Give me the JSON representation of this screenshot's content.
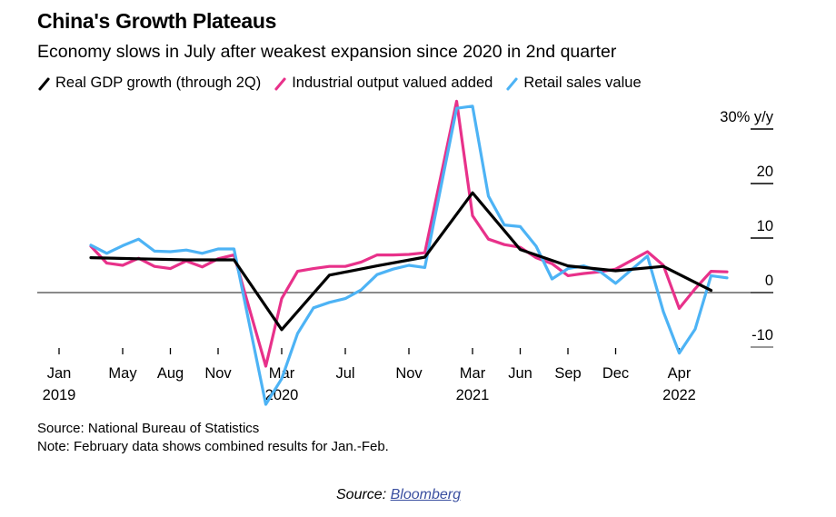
{
  "chart_data": {
    "type": "line",
    "title": "China's Growth Plateaus",
    "subtitle": "Economy slows in July after weakest expansion since 2020 in 2nd quarter",
    "ylabel": "30% y/y",
    "ylim": [
      -12,
      36
    ],
    "yticks": [
      30,
      20,
      10,
      0,
      -10
    ],
    "ytick_labels": [
      "30% y/y",
      "20",
      "10",
      "0",
      "-10"
    ],
    "xticks": [
      {
        "x": "2019-01",
        "label": "Jan",
        "year": "2019"
      },
      {
        "x": "2019-05",
        "label": "May",
        "year": ""
      },
      {
        "x": "2019-08",
        "label": "Aug",
        "year": ""
      },
      {
        "x": "2019-11",
        "label": "Nov",
        "year": ""
      },
      {
        "x": "2020-03",
        "label": "Mar",
        "year": "2020"
      },
      {
        "x": "2020-07",
        "label": "Jul",
        "year": ""
      },
      {
        "x": "2020-11",
        "label": "Nov",
        "year": ""
      },
      {
        "x": "2021-03",
        "label": "Mar",
        "year": "2021"
      },
      {
        "x": "2021-06",
        "label": "Jun",
        "year": ""
      },
      {
        "x": "2021-09",
        "label": "Sep",
        "year": ""
      },
      {
        "x": "2021-12",
        "label": "Dec",
        "year": ""
      },
      {
        "x": "2022-04",
        "label": "Apr",
        "year": "2022"
      }
    ],
    "grid": false,
    "legend_placement": "top",
    "series": [
      {
        "name": "Real GDP growth (through 2Q)",
        "color": "#000000",
        "points": [
          [
            "2019-03",
            6.4
          ],
          [
            "2019-06",
            6.2
          ],
          [
            "2019-09",
            6.0
          ],
          [
            "2019-12",
            6.0
          ],
          [
            "2020-03",
            -6.8
          ],
          [
            "2020-06",
            3.2
          ],
          [
            "2020-09",
            4.9
          ],
          [
            "2020-12",
            6.5
          ],
          [
            "2021-03",
            18.3
          ],
          [
            "2021-06",
            7.9
          ],
          [
            "2021-09",
            4.9
          ],
          [
            "2021-12",
            4.0
          ],
          [
            "2022-03",
            4.8
          ],
          [
            "2022-06",
            0.4
          ]
        ]
      },
      {
        "name": "Industrial output valued added",
        "color": "#e8318a",
        "points": [
          [
            "2019-03",
            8.5
          ],
          [
            "2019-04",
            5.4
          ],
          [
            "2019-05",
            5.0
          ],
          [
            "2019-06",
            6.3
          ],
          [
            "2019-07",
            4.8
          ],
          [
            "2019-08",
            4.4
          ],
          [
            "2019-09",
            5.8
          ],
          [
            "2019-10",
            4.7
          ],
          [
            "2019-11",
            6.2
          ],
          [
            "2019-12",
            6.9
          ],
          [
            "2020-02",
            -13.5
          ],
          [
            "2020-03",
            -1.1
          ],
          [
            "2020-04",
            3.9
          ],
          [
            "2020-05",
            4.4
          ],
          [
            "2020-06",
            4.8
          ],
          [
            "2020-07",
            4.8
          ],
          [
            "2020-08",
            5.6
          ],
          [
            "2020-09",
            6.9
          ],
          [
            "2020-10",
            6.9
          ],
          [
            "2020-11",
            7.0
          ],
          [
            "2020-12",
            7.3
          ],
          [
            "2021-02",
            35.1
          ],
          [
            "2021-03",
            14.1
          ],
          [
            "2021-04",
            9.8
          ],
          [
            "2021-05",
            8.8
          ],
          [
            "2021-06",
            8.3
          ],
          [
            "2021-07",
            6.4
          ],
          [
            "2021-08",
            5.3
          ],
          [
            "2021-09",
            3.1
          ],
          [
            "2021-10",
            3.5
          ],
          [
            "2021-11",
            3.8
          ],
          [
            "2021-12",
            4.3
          ],
          [
            "2022-02",
            7.5
          ],
          [
            "2022-03",
            5.0
          ],
          [
            "2022-04",
            -2.9
          ],
          [
            "2022-05",
            0.7
          ],
          [
            "2022-06",
            3.9
          ],
          [
            "2022-07",
            3.8
          ]
        ]
      },
      {
        "name": "Retail sales value",
        "color": "#4db3f5",
        "points": [
          [
            "2019-03",
            8.7
          ],
          [
            "2019-04",
            7.2
          ],
          [
            "2019-05",
            8.6
          ],
          [
            "2019-06",
            9.8
          ],
          [
            "2019-07",
            7.6
          ],
          [
            "2019-08",
            7.5
          ],
          [
            "2019-09",
            7.8
          ],
          [
            "2019-10",
            7.2
          ],
          [
            "2019-11",
            8.0
          ],
          [
            "2019-12",
            8.0
          ],
          [
            "2020-02",
            -20.5
          ],
          [
            "2020-03",
            -15.8
          ],
          [
            "2020-04",
            -7.5
          ],
          [
            "2020-05",
            -2.8
          ],
          [
            "2020-06",
            -1.8
          ],
          [
            "2020-07",
            -1.1
          ],
          [
            "2020-08",
            0.5
          ],
          [
            "2020-09",
            3.3
          ],
          [
            "2020-10",
            4.3
          ],
          [
            "2020-11",
            5.0
          ],
          [
            "2020-12",
            4.6
          ],
          [
            "2021-02",
            33.8
          ],
          [
            "2021-03",
            34.2
          ],
          [
            "2021-04",
            17.7
          ],
          [
            "2021-05",
            12.4
          ],
          [
            "2021-06",
            12.1
          ],
          [
            "2021-07",
            8.5
          ],
          [
            "2021-08",
            2.5
          ],
          [
            "2021-09",
            4.4
          ],
          [
            "2021-10",
            4.9
          ],
          [
            "2021-11",
            3.9
          ],
          [
            "2021-12",
            1.7
          ],
          [
            "2022-02",
            6.7
          ],
          [
            "2022-03",
            -3.5
          ],
          [
            "2022-04",
            -11.1
          ],
          [
            "2022-05",
            -6.7
          ],
          [
            "2022-06",
            3.1
          ],
          [
            "2022-07",
            2.7
          ]
        ]
      }
    ]
  },
  "footer": {
    "source": "Source: National Bureau of Statistics",
    "note": "Note: February data shows combined results for Jan.-Feb.",
    "credit_prefix": "Source: ",
    "credit_link": "Bloomberg"
  }
}
